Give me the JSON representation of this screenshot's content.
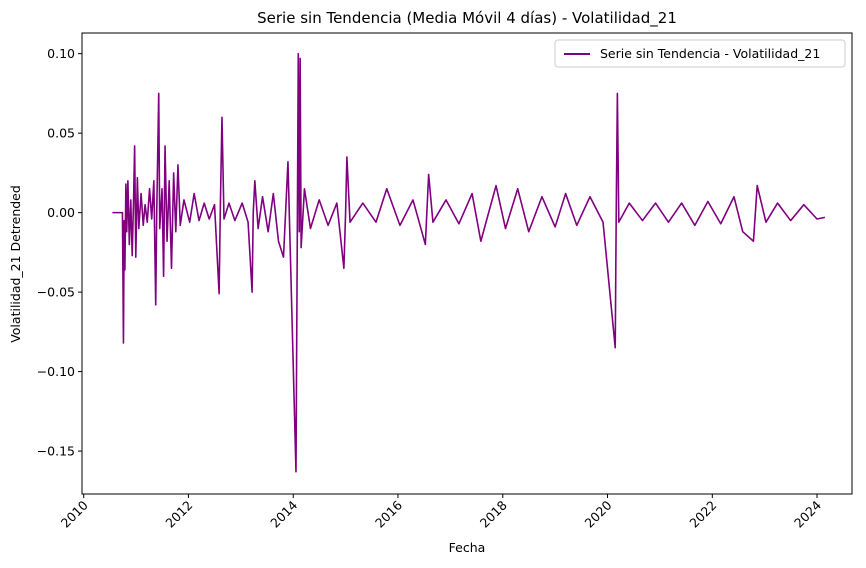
{
  "chart_data": {
    "type": "line",
    "title": "Serie sin Tendencia (Media Móvil 4 días) - Volatilidad_21",
    "xlabel": "Fecha",
    "ylabel": "Volatilidad_21 Detrended",
    "xlim": [
      "2009-12-20",
      "2024-09-01"
    ],
    "ylim": [
      -0.177,
      0.113
    ],
    "x_ticks": [
      {
        "date": "2010-01-01",
        "label": "2010"
      },
      {
        "date": "2012-01-01",
        "label": "2012"
      },
      {
        "date": "2014-01-01",
        "label": "2014"
      },
      {
        "date": "2016-01-01",
        "label": "2016"
      },
      {
        "date": "2018-01-01",
        "label": "2018"
      },
      {
        "date": "2020-01-01",
        "label": "2020"
      },
      {
        "date": "2022-01-01",
        "label": "2022"
      },
      {
        "date": "2024-01-01",
        "label": "2024"
      }
    ],
    "y_ticks": [
      {
        "value": 0.1,
        "label": "0.10"
      },
      {
        "value": 0.05,
        "label": "0.05"
      },
      {
        "value": 0.0,
        "label": "0.00"
      },
      {
        "value": -0.05,
        "label": "−0.05"
      },
      {
        "value": -0.1,
        "label": "−0.10"
      },
      {
        "value": -0.15,
        "label": "−0.15"
      }
    ],
    "grid": false,
    "legend_position": "top-right",
    "series": [
      {
        "name": "Serie sin Tendencia - Volatilidad_21",
        "color": "#800080",
        "points": [
          [
            "2010-07-20",
            0.0
          ],
          [
            "2010-09-10",
            0.0
          ],
          [
            "2010-09-28",
            0.0
          ],
          [
            "2010-10-05",
            -0.082
          ],
          [
            "2010-10-10",
            -0.005
          ],
          [
            "2010-10-15",
            -0.036
          ],
          [
            "2010-10-22",
            0.018
          ],
          [
            "2010-10-28",
            -0.012
          ],
          [
            "2010-11-05",
            0.02
          ],
          [
            "2010-11-15",
            -0.02
          ],
          [
            "2010-11-25",
            0.008
          ],
          [
            "2010-12-05",
            -0.027
          ],
          [
            "2010-12-15",
            0.01
          ],
          [
            "2010-12-22",
            0.042
          ],
          [
            "2010-12-30",
            -0.028
          ],
          [
            "2011-01-10",
            0.022
          ],
          [
            "2011-01-20",
            -0.01
          ],
          [
            "2011-02-05",
            0.012
          ],
          [
            "2011-02-20",
            -0.008
          ],
          [
            "2011-03-05",
            0.005
          ],
          [
            "2011-03-20",
            -0.006
          ],
          [
            "2011-04-05",
            0.015
          ],
          [
            "2011-04-20",
            -0.004
          ],
          [
            "2011-05-05",
            0.02
          ],
          [
            "2011-05-18",
            -0.058
          ],
          [
            "2011-05-25",
            0.0
          ],
          [
            "2011-06-08",
            0.075
          ],
          [
            "2011-06-15",
            -0.01
          ],
          [
            "2011-07-01",
            0.015
          ],
          [
            "2011-07-12",
            -0.04
          ],
          [
            "2011-07-22",
            0.042
          ],
          [
            "2011-08-05",
            -0.018
          ],
          [
            "2011-08-20",
            0.02
          ],
          [
            "2011-09-05",
            -0.035
          ],
          [
            "2011-09-20",
            0.025
          ],
          [
            "2011-10-05",
            -0.012
          ],
          [
            "2011-10-20",
            0.03
          ],
          [
            "2011-11-05",
            -0.008
          ],
          [
            "2011-12-01",
            0.008
          ],
          [
            "2012-01-10",
            -0.006
          ],
          [
            "2012-02-10",
            0.012
          ],
          [
            "2012-03-15",
            -0.005
          ],
          [
            "2012-04-20",
            0.006
          ],
          [
            "2012-05-25",
            -0.004
          ],
          [
            "2012-07-01",
            0.005
          ],
          [
            "2012-08-02",
            -0.051
          ],
          [
            "2012-08-10",
            0.0
          ],
          [
            "2012-08-22",
            0.06
          ],
          [
            "2012-09-05",
            -0.004
          ],
          [
            "2012-10-10",
            0.006
          ],
          [
            "2012-11-20",
            -0.005
          ],
          [
            "2013-01-10",
            0.006
          ],
          [
            "2013-02-20",
            -0.006
          ],
          [
            "2013-03-20",
            -0.05
          ],
          [
            "2013-03-28",
            0.0
          ],
          [
            "2013-04-08",
            0.02
          ],
          [
            "2013-05-01",
            -0.01
          ],
          [
            "2013-06-01",
            0.01
          ],
          [
            "2013-07-10",
            -0.012
          ],
          [
            "2013-08-15",
            0.012
          ],
          [
            "2013-09-20",
            -0.018
          ],
          [
            "2013-10-25",
            -0.028
          ],
          [
            "2013-11-25",
            0.032
          ],
          [
            "2013-12-10",
            -0.02
          ],
          [
            "2014-01-20",
            -0.163
          ],
          [
            "2014-01-28",
            -0.035
          ],
          [
            "2014-02-05",
            0.1
          ],
          [
            "2014-02-12",
            -0.012
          ],
          [
            "2014-02-18",
            0.097
          ],
          [
            "2014-02-25",
            -0.022
          ],
          [
            "2014-03-20",
            0.015
          ],
          [
            "2014-05-01",
            -0.01
          ],
          [
            "2014-07-01",
            0.008
          ],
          [
            "2014-09-01",
            -0.008
          ],
          [
            "2014-11-01",
            0.006
          ],
          [
            "2014-12-20",
            -0.035
          ],
          [
            "2015-01-01",
            0.0
          ],
          [
            "2015-01-10",
            0.035
          ],
          [
            "2015-02-01",
            -0.006
          ],
          [
            "2015-05-01",
            0.006
          ],
          [
            "2015-08-01",
            -0.006
          ],
          [
            "2015-10-15",
            0.015
          ],
          [
            "2016-01-15",
            -0.008
          ],
          [
            "2016-04-15",
            0.008
          ],
          [
            "2016-07-10",
            -0.02
          ],
          [
            "2016-08-02",
            0.024
          ],
          [
            "2016-09-01",
            -0.006
          ],
          [
            "2016-12-01",
            0.008
          ],
          [
            "2017-03-01",
            -0.007
          ],
          [
            "2017-06-01",
            0.012
          ],
          [
            "2017-08-01",
            -0.018
          ],
          [
            "2017-11-15",
            0.017
          ],
          [
            "2018-01-20",
            -0.01
          ],
          [
            "2018-04-15",
            0.015
          ],
          [
            "2018-07-01",
            -0.012
          ],
          [
            "2018-10-01",
            0.01
          ],
          [
            "2019-01-01",
            -0.009
          ],
          [
            "2019-03-15",
            0.012
          ],
          [
            "2019-06-01",
            -0.008
          ],
          [
            "2019-09-01",
            0.01
          ],
          [
            "2019-12-01",
            -0.006
          ],
          [
            "2020-02-24",
            -0.085
          ],
          [
            "2020-03-02",
            0.0
          ],
          [
            "2020-03-10",
            0.075
          ],
          [
            "2020-03-20",
            -0.006
          ],
          [
            "2020-06-01",
            0.006
          ],
          [
            "2020-09-01",
            -0.005
          ],
          [
            "2020-12-01",
            0.006
          ],
          [
            "2021-03-01",
            -0.006
          ],
          [
            "2021-06-01",
            0.006
          ],
          [
            "2021-09-01",
            -0.008
          ],
          [
            "2021-12-01",
            0.007
          ],
          [
            "2022-03-01",
            -0.007
          ],
          [
            "2022-06-01",
            0.01
          ],
          [
            "2022-08-01",
            -0.012
          ],
          [
            "2022-10-15",
            -0.018
          ],
          [
            "2022-11-10",
            0.017
          ],
          [
            "2023-01-10",
            -0.006
          ],
          [
            "2023-04-01",
            0.006
          ],
          [
            "2023-07-01",
            -0.005
          ],
          [
            "2023-10-01",
            0.005
          ],
          [
            "2024-01-01",
            -0.004
          ],
          [
            "2024-02-25",
            -0.003
          ]
        ]
      }
    ]
  }
}
